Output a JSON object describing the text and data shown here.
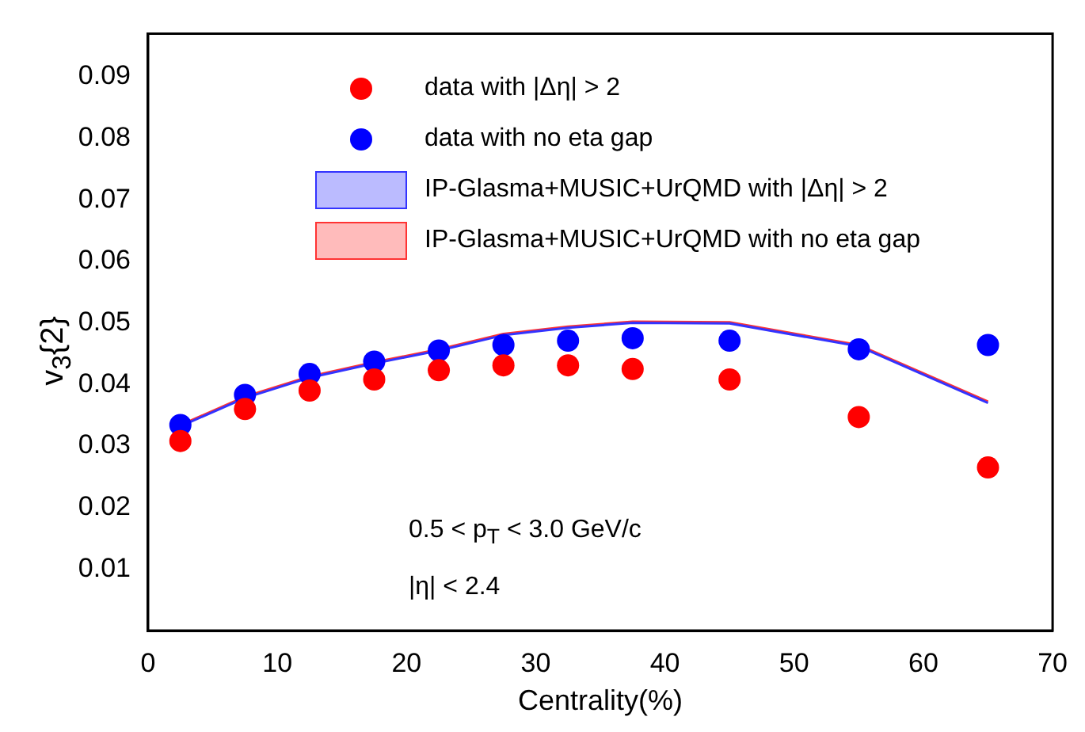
{
  "chart_data": {
    "type": "scatter",
    "xlabel": "Centrality(%)",
    "ylabel": "v$_{3}${2}",
    "x": [
      2.5,
      7.5,
      12.5,
      17.5,
      22.5,
      27.5,
      32.5,
      37.5,
      45,
      55,
      65
    ],
    "series": [
      {
        "name": "data with |Δη| > 2",
        "color": "#ff0000",
        "type": "scatter",
        "marker": "circle",
        "values": [
          0.0308,
          0.036,
          0.039,
          0.0408,
          0.0423,
          0.0431,
          0.0431,
          0.0425,
          0.0408,
          0.0347,
          0.0265
        ]
      },
      {
        "name": "data with no eta gap",
        "color": "#0000ff",
        "type": "scatter",
        "marker": "circle",
        "values": [
          0.0334,
          0.0383,
          0.0417,
          0.0437,
          0.0455,
          0.0464,
          0.0471,
          0.0475,
          0.0471,
          0.0457,
          0.0464
        ]
      },
      {
        "name": "IP-Glasma+MUSIC+UrQMD with |Δη| > 2",
        "color": "#3333ff",
        "type": "line",
        "values": [
          0.0332,
          0.0378,
          0.0411,
          0.0434,
          0.0455,
          0.048,
          0.0492,
          0.05,
          0.0499,
          0.0462,
          0.037
        ]
      },
      {
        "name": "IP-Glasma+MUSIC+UrQMD with no eta gap",
        "color": "#ff3333",
        "type": "line",
        "values": [
          0.0334,
          0.038,
          0.0413,
          0.0436,
          0.0457,
          0.0482,
          0.0494,
          0.0502,
          0.0501,
          0.0464,
          0.0372
        ]
      }
    ],
    "xlim": [
      0,
      70
    ],
    "xticks": [
      0,
      10,
      20,
      30,
      40,
      50,
      60,
      70
    ],
    "ylim": [
      0,
      0.097
    ],
    "yticks": [
      0.01,
      0.02,
      0.03,
      0.04,
      0.05,
      0.06,
      0.07,
      0.08,
      0.09
    ],
    "grid": false,
    "legend": "top",
    "annotations": [
      "0.5 < p$_{T}$ < 3.0 GeV/c",
      "|η| < 2.4"
    ]
  }
}
